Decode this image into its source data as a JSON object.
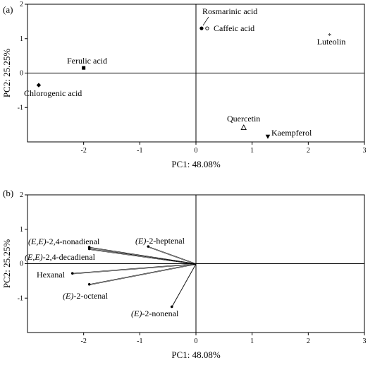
{
  "chart_data": [
    {
      "type": "scatter",
      "panel_label": "(a)",
      "xlabel": "PC1: 48.08%",
      "ylabel": "PC2: 25.25%",
      "xlim": [
        -3,
        3
      ],
      "ylim": [
        -2,
        2
      ],
      "x_ticks": [
        -2,
        -1,
        0,
        1,
        2,
        3
      ],
      "y_ticks": [
        -1,
        0,
        1,
        2
      ],
      "x_tick_labels": [
        "-2",
        "-1",
        "0",
        "1",
        "2",
        "3"
      ],
      "y_tick_labels": [
        "-1",
        "0",
        "1",
        "2"
      ],
      "points": [
        {
          "label": "Rosmarinic acid",
          "x": 0.1,
          "y": 1.3,
          "marker": "filled-circle"
        },
        {
          "label": "Caffeic acid",
          "x": 0.2,
          "y": 1.3,
          "marker": "open-circle"
        },
        {
          "label": "Luteolin",
          "x": 2.38,
          "y": 1.1,
          "marker": "star"
        },
        {
          "label": "Ferulic acid",
          "x": -2.0,
          "y": 0.15,
          "marker": "square"
        },
        {
          "label": "Chlorogenic acid",
          "x": -2.8,
          "y": -0.35,
          "marker": "diamond"
        },
        {
          "label": "Quercetin",
          "x": 0.85,
          "y": -1.58,
          "marker": "open-triangle"
        },
        {
          "label": "Kaempferol",
          "x": 1.28,
          "y": -1.85,
          "marker": "filled-down-triangle"
        }
      ]
    },
    {
      "type": "scatter",
      "panel_label": "(b)",
      "xlabel": "PC1: 48.08%",
      "ylabel": "PC2: 25.25%",
      "xlim": [
        -3,
        3
      ],
      "ylim": [
        -2,
        2
      ],
      "x_ticks": [
        -2,
        -1,
        0,
        1,
        2,
        3
      ],
      "y_ticks": [
        -1,
        0,
        1,
        2
      ],
      "x_tick_labels": [
        "-2",
        "-1",
        "0",
        "1",
        "2",
        "3"
      ],
      "y_tick_labels": [
        "-1",
        "0",
        "1",
        "2"
      ],
      "vectors_from_origin": true,
      "points": [
        {
          "label_prefix": "(E)",
          "label_suffix": "-2-heptenal",
          "x": -0.85,
          "y": 0.5
        },
        {
          "label_prefix": "(E,E)",
          "label_suffix": "-2,4-nonadienal",
          "x": -1.9,
          "y": 0.48
        },
        {
          "label_prefix": "(E,E)",
          "label_suffix": "-2,4-decadienal",
          "x": -1.9,
          "y": 0.43
        },
        {
          "label_prefix": "",
          "label_suffix": "Hexanal",
          "x": -2.2,
          "y": -0.28
        },
        {
          "label_prefix": "(E)",
          "label_suffix": "-2-octenal",
          "x": -1.9,
          "y": -0.6
        },
        {
          "label_prefix": "(E)",
          "label_suffix": "-2-nonenal",
          "x": -0.43,
          "y": -1.25
        }
      ]
    }
  ]
}
